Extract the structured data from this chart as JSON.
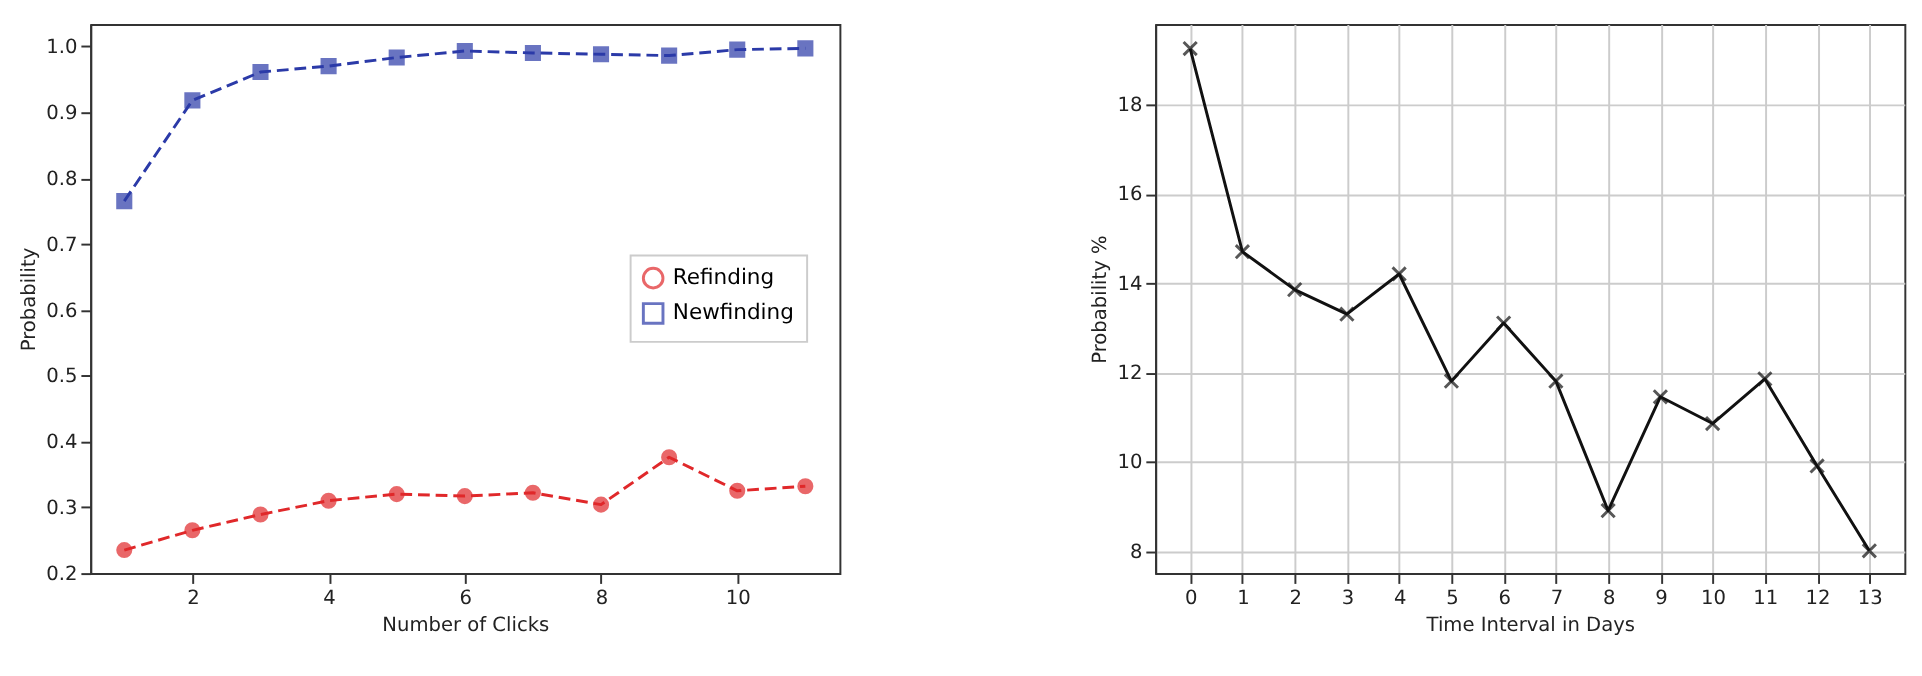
{
  "chart_data": [
    {
      "type": "line",
      "xlabel": "Number of Clicks",
      "ylabel": "Probability",
      "x": [
        1,
        2,
        3,
        4,
        5,
        6,
        7,
        8,
        9,
        10,
        11
      ],
      "xlim": [
        0.5,
        11.5
      ],
      "xticks": [
        2,
        4,
        6,
        8,
        10
      ],
      "ylim": [
        0.2,
        1.034
      ],
      "yticks": [
        0.2,
        0.3,
        0.4,
        0.5,
        0.6,
        0.7,
        0.8,
        0.9,
        {
          "value": 1.0,
          "label": "1.0"
        }
      ],
      "grid": false,
      "legend": "right",
      "line_style": "dashed",
      "series": [
        {
          "name": "Refinding",
          "color": "#e0282a",
          "marker": "circle",
          "values": [
            0.235,
            0.265,
            0.289,
            0.31,
            0.32,
            0.317,
            0.322,
            0.304,
            0.376,
            0.325,
            0.332
          ]
        },
        {
          "name": "Newfinding",
          "color": "#2b3aa8",
          "marker": "square",
          "values": [
            0.765,
            0.918,
            0.961,
            0.97,
            0.983,
            0.993,
            0.99,
            0.988,
            0.986,
            0.995,
            0.997
          ]
        }
      ]
    },
    {
      "type": "line",
      "xlabel": "Time Interval in Days",
      "ylabel": "Probability %",
      "x": [
        0,
        1,
        2,
        3,
        4,
        5,
        6,
        7,
        8,
        9,
        10,
        11,
        12,
        13
      ],
      "xlim": [
        -0.67,
        13.67
      ],
      "xticks": [
        0,
        1,
        2,
        3,
        4,
        5,
        6,
        7,
        8,
        9,
        10,
        11,
        12,
        13
      ],
      "ylim": [
        7.5,
        19.8
      ],
      "yticks": [
        8,
        10,
        12,
        14,
        16,
        18
      ],
      "grid": true,
      "line_style": "solid",
      "series": [
        {
          "color": "#111111",
          "marker": "cross",
          "values": [
            19.25,
            14.7,
            13.85,
            13.3,
            14.2,
            11.8,
            13.1,
            11.8,
            8.9,
            11.45,
            10.85,
            11.85,
            9.9,
            8.0
          ]
        }
      ]
    }
  ]
}
